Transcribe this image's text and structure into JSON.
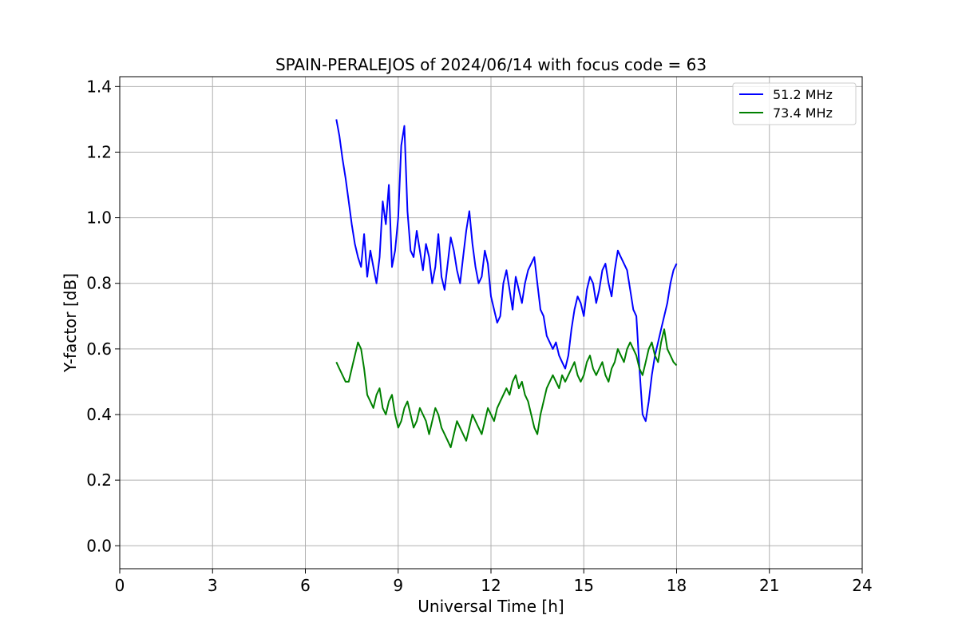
{
  "chart_data": {
    "type": "line",
    "title": "SPAIN-PERALEJOS of 2024/06/14 with focus code = 63",
    "xlabel": "Universal Time [h]",
    "ylabel": "Y-factor [dB]",
    "xlim": [
      0,
      24
    ],
    "ylim": [
      -0.07,
      1.43
    ],
    "xticks": [
      0,
      3,
      6,
      9,
      12,
      15,
      18,
      21,
      24
    ],
    "xtick_labels": [
      "0",
      "3",
      "6",
      "9",
      "12",
      "15",
      "18",
      "21",
      "24"
    ],
    "yticks": [
      0.0,
      0.2,
      0.4,
      0.6,
      0.8,
      1.0,
      1.2,
      1.4
    ],
    "ytick_labels": [
      "0.0",
      "0.2",
      "0.4",
      "0.6",
      "0.8",
      "1.0",
      "1.2",
      "1.4"
    ],
    "grid": true,
    "legend_position": "top-right",
    "series": [
      {
        "name": "51.2 MHz",
        "color": "#0000ff",
        "x": [
          7.0,
          7.1,
          7.2,
          7.3,
          7.4,
          7.5,
          7.6,
          7.7,
          7.8,
          7.9,
          8.0,
          8.1,
          8.2,
          8.3,
          8.4,
          8.5,
          8.6,
          8.7,
          8.8,
          8.9,
          9.0,
          9.1,
          9.2,
          9.3,
          9.4,
          9.5,
          9.6,
          9.7,
          9.8,
          9.9,
          10.0,
          10.1,
          10.2,
          10.3,
          10.4,
          10.5,
          10.6,
          10.7,
          10.8,
          10.9,
          11.0,
          11.1,
          11.2,
          11.3,
          11.4,
          11.5,
          11.6,
          11.7,
          11.8,
          11.9,
          12.0,
          12.1,
          12.2,
          12.3,
          12.4,
          12.5,
          12.6,
          12.7,
          12.8,
          12.9,
          13.0,
          13.1,
          13.2,
          13.3,
          13.4,
          13.5,
          13.6,
          13.7,
          13.8,
          13.9,
          14.0,
          14.1,
          14.2,
          14.3,
          14.4,
          14.5,
          14.6,
          14.7,
          14.8,
          14.9,
          15.0,
          15.1,
          15.2,
          15.3,
          15.4,
          15.5,
          15.6,
          15.7,
          15.8,
          15.9,
          16.0,
          16.1,
          16.2,
          16.3,
          16.4,
          16.5,
          16.6,
          16.7,
          16.8,
          16.9,
          17.0,
          17.1,
          17.2,
          17.3,
          17.4,
          17.5,
          17.6,
          17.7,
          17.8,
          17.9,
          18.0
        ],
        "y": [
          1.3,
          1.25,
          1.18,
          1.12,
          1.05,
          0.98,
          0.92,
          0.88,
          0.85,
          0.95,
          0.82,
          0.9,
          0.85,
          0.8,
          0.88,
          1.05,
          0.98,
          1.1,
          0.85,
          0.9,
          1.0,
          1.22,
          1.28,
          1.02,
          0.9,
          0.88,
          0.96,
          0.9,
          0.84,
          0.92,
          0.88,
          0.8,
          0.85,
          0.95,
          0.82,
          0.78,
          0.86,
          0.94,
          0.9,
          0.84,
          0.8,
          0.88,
          0.96,
          1.02,
          0.92,
          0.85,
          0.8,
          0.82,
          0.9,
          0.86,
          0.76,
          0.72,
          0.68,
          0.7,
          0.8,
          0.84,
          0.78,
          0.72,
          0.82,
          0.78,
          0.74,
          0.8,
          0.84,
          0.86,
          0.88,
          0.8,
          0.72,
          0.7,
          0.64,
          0.62,
          0.6,
          0.62,
          0.58,
          0.56,
          0.54,
          0.58,
          0.66,
          0.72,
          0.76,
          0.74,
          0.7,
          0.78,
          0.82,
          0.8,
          0.74,
          0.78,
          0.84,
          0.86,
          0.8,
          0.76,
          0.84,
          0.9,
          0.88,
          0.86,
          0.84,
          0.78,
          0.72,
          0.7,
          0.54,
          0.4,
          0.38,
          0.44,
          0.52,
          0.58,
          0.62,
          0.66,
          0.7,
          0.74,
          0.8,
          0.84,
          0.86
        ]
      },
      {
        "name": "73.4 MHz",
        "color": "#008000",
        "x": [
          7.0,
          7.1,
          7.2,
          7.3,
          7.4,
          7.5,
          7.6,
          7.7,
          7.8,
          7.9,
          8.0,
          8.1,
          8.2,
          8.3,
          8.4,
          8.5,
          8.6,
          8.7,
          8.8,
          8.9,
          9.0,
          9.1,
          9.2,
          9.3,
          9.4,
          9.5,
          9.6,
          9.7,
          9.8,
          9.9,
          10.0,
          10.1,
          10.2,
          10.3,
          10.4,
          10.5,
          10.6,
          10.7,
          10.8,
          10.9,
          11.0,
          11.1,
          11.2,
          11.3,
          11.4,
          11.5,
          11.6,
          11.7,
          11.8,
          11.9,
          12.0,
          12.1,
          12.2,
          12.3,
          12.4,
          12.5,
          12.6,
          12.7,
          12.8,
          12.9,
          13.0,
          13.1,
          13.2,
          13.3,
          13.4,
          13.5,
          13.6,
          13.7,
          13.8,
          13.9,
          14.0,
          14.1,
          14.2,
          14.3,
          14.4,
          14.5,
          14.6,
          14.7,
          14.8,
          14.9,
          15.0,
          15.1,
          15.2,
          15.3,
          15.4,
          15.5,
          15.6,
          15.7,
          15.8,
          15.9,
          16.0,
          16.1,
          16.2,
          16.3,
          16.4,
          16.5,
          16.6,
          16.7,
          16.8,
          16.9,
          17.0,
          17.1,
          17.2,
          17.3,
          17.4,
          17.5,
          17.6,
          17.7,
          17.8,
          17.9,
          18.0
        ],
        "y": [
          0.56,
          0.54,
          0.52,
          0.5,
          0.5,
          0.54,
          0.58,
          0.62,
          0.6,
          0.54,
          0.46,
          0.44,
          0.42,
          0.46,
          0.48,
          0.42,
          0.4,
          0.44,
          0.46,
          0.4,
          0.36,
          0.38,
          0.42,
          0.44,
          0.4,
          0.36,
          0.38,
          0.42,
          0.4,
          0.38,
          0.34,
          0.38,
          0.42,
          0.4,
          0.36,
          0.34,
          0.32,
          0.3,
          0.34,
          0.38,
          0.36,
          0.34,
          0.32,
          0.36,
          0.4,
          0.38,
          0.36,
          0.34,
          0.38,
          0.42,
          0.4,
          0.38,
          0.42,
          0.44,
          0.46,
          0.48,
          0.46,
          0.5,
          0.52,
          0.48,
          0.5,
          0.46,
          0.44,
          0.4,
          0.36,
          0.34,
          0.4,
          0.44,
          0.48,
          0.5,
          0.52,
          0.5,
          0.48,
          0.52,
          0.5,
          0.52,
          0.54,
          0.56,
          0.52,
          0.5,
          0.52,
          0.56,
          0.58,
          0.54,
          0.52,
          0.54,
          0.56,
          0.52,
          0.5,
          0.54,
          0.56,
          0.6,
          0.58,
          0.56,
          0.6,
          0.62,
          0.6,
          0.58,
          0.54,
          0.52,
          0.56,
          0.6,
          0.62,
          0.58,
          0.56,
          0.62,
          0.66,
          0.6,
          0.58,
          0.56,
          0.55
        ]
      }
    ]
  }
}
